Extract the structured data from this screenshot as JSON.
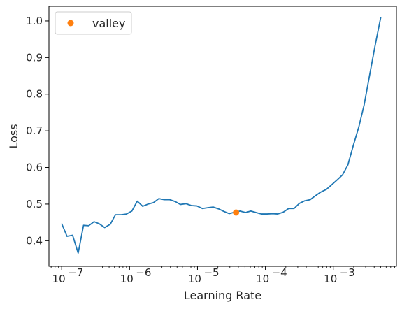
{
  "chart_data": {
    "type": "line",
    "xlabel": "Learning Rate",
    "ylabel": "Loss",
    "xscale": "log",
    "xlim": [
      6.5e-08,
      0.0085
    ],
    "ylim": [
      0.33,
      1.04
    ],
    "x_tick_exponents": [
      -7,
      -6,
      -5,
      -4,
      -3
    ],
    "x_tick_labels": [
      "10",
      "10",
      "10",
      "10",
      "10"
    ],
    "x_tick_superscripts": [
      "−7",
      "−6",
      "−5",
      "−4",
      "−3"
    ],
    "y_ticks": [
      0.4,
      0.5,
      0.6,
      0.7,
      0.8,
      0.9,
      1.0
    ],
    "y_tick_labels": [
      "0.4",
      "0.5",
      "0.6",
      "0.7",
      "0.8",
      "0.9",
      "1.0"
    ],
    "grid": false,
    "legend_position": "upper-left",
    "series": [
      {
        "color": "#1f77b4",
        "x": [
          1e-07,
          1.2e-07,
          1.45e-07,
          1.75e-07,
          2.1e-07,
          2.5e-07,
          3e-07,
          3.6e-07,
          4.3e-07,
          5.2e-07,
          6.2e-07,
          7.5e-07,
          9e-07,
          1.08e-06,
          1.3e-06,
          1.56e-06,
          1.87e-06,
          2.25e-06,
          2.7e-06,
          3.24e-06,
          3.9e-06,
          4.7e-06,
          5.6e-06,
          6.8e-06,
          8.1e-06,
          9.8e-06,
          1.18e-05,
          1.41e-05,
          1.7e-05,
          2.04e-05,
          2.45e-05,
          2.94e-05,
          3.53e-05,
          4.24e-05,
          5.1e-05,
          6.1e-05,
          7.3e-05,
          8.8e-05,
          0.000106,
          0.000127,
          0.000152,
          0.000183,
          0.00022,
          0.000264,
          0.000317,
          0.00038,
          0.000456,
          0.000548,
          0.000657,
          0.00079,
          0.00095,
          0.00114,
          0.00137,
          0.00164,
          0.00197,
          0.00237,
          0.00284,
          0.00341,
          0.0041,
          0.005
        ],
        "y": [
          0.447,
          0.412,
          0.415,
          0.366,
          0.442,
          0.441,
          0.452,
          0.446,
          0.436,
          0.445,
          0.471,
          0.471,
          0.473,
          0.481,
          0.508,
          0.494,
          0.5,
          0.504,
          0.515,
          0.512,
          0.512,
          0.507,
          0.499,
          0.501,
          0.496,
          0.495,
          0.488,
          0.49,
          0.492,
          0.487,
          0.48,
          0.474,
          0.478,
          0.481,
          0.477,
          0.481,
          0.477,
          0.473,
          0.473,
          0.474,
          0.473,
          0.478,
          0.488,
          0.488,
          0.502,
          0.509,
          0.512,
          0.523,
          0.533,
          0.54,
          0.553,
          0.566,
          0.58,
          0.607,
          0.66,
          0.71,
          0.77,
          0.85,
          0.93,
          1.01
        ]
      }
    ],
    "markers": [
      {
        "name": "valley",
        "x": 3.7e-05,
        "y": 0.477,
        "color": "#ff7f0e"
      }
    ],
    "colors": {
      "line": "#1f77b4",
      "valley": "#ff7f0e",
      "axes": "#000000",
      "text": "#262626"
    }
  }
}
